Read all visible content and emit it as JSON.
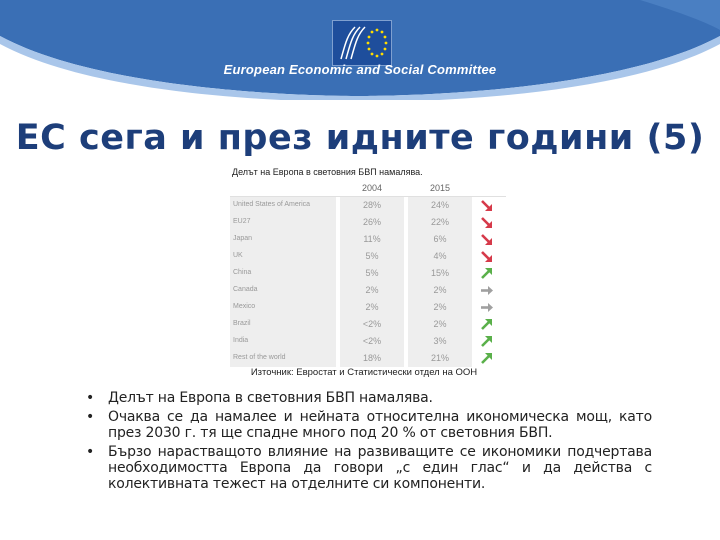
{
  "header": {
    "org_name": "European Economic and Social Committee",
    "band_color": "#3a6fb5",
    "accent_color": "#a9c6ea"
  },
  "title": "ЕС сега и през идните години (5)",
  "table": {
    "title": "Делът на Европа в световния БВП намалява.",
    "columns": [
      "2004",
      "2015"
    ],
    "rows": [
      {
        "country": "United States of America",
        "v2004": "28%",
        "v2015": "24%",
        "trend": "down"
      },
      {
        "country": "EU27",
        "v2004": "26%",
        "v2015": "22%",
        "trend": "down"
      },
      {
        "country": "Japan",
        "v2004": "11%",
        "v2015": "6%",
        "trend": "down"
      },
      {
        "country": "UK",
        "v2004": "5%",
        "v2015": "4%",
        "trend": "down"
      },
      {
        "country": "China",
        "v2004": "5%",
        "v2015": "15%",
        "trend": "up"
      },
      {
        "country": "Canada",
        "v2004": "2%",
        "v2015": "2%",
        "trend": "flat"
      },
      {
        "country": "Mexico",
        "v2004": "2%",
        "v2015": "2%",
        "trend": "flat"
      },
      {
        "country": "Brazil",
        "v2004": "<2%",
        "v2015": "2%",
        "trend": "up"
      },
      {
        "country": "India",
        "v2004": "<2%",
        "v2015": "3%",
        "trend": "up"
      },
      {
        "country": "Rest of the world",
        "v2004": "18%",
        "v2015": "21%",
        "trend": "up"
      }
    ],
    "trend_colors": {
      "down": "#d63a4a",
      "up": "#5ab04a",
      "flat": "#a0a0a0"
    }
  },
  "source": "Източник: Евростат и Статистически отдел на ООН",
  "bullets": [
    "Делът на Европа в световния БВП намалява.",
    "Очаква се да намалее и нейната относителна икономическа мощ, като през 2030 г. тя ще спадне много под 20 % от световния БВП.",
    "Бързо нарастващото влияние на развиващите се икономики подчертава необходимостта Европа да говори „с един глас“ и да действа с колективната тежест на отделните си компоненти."
  ]
}
